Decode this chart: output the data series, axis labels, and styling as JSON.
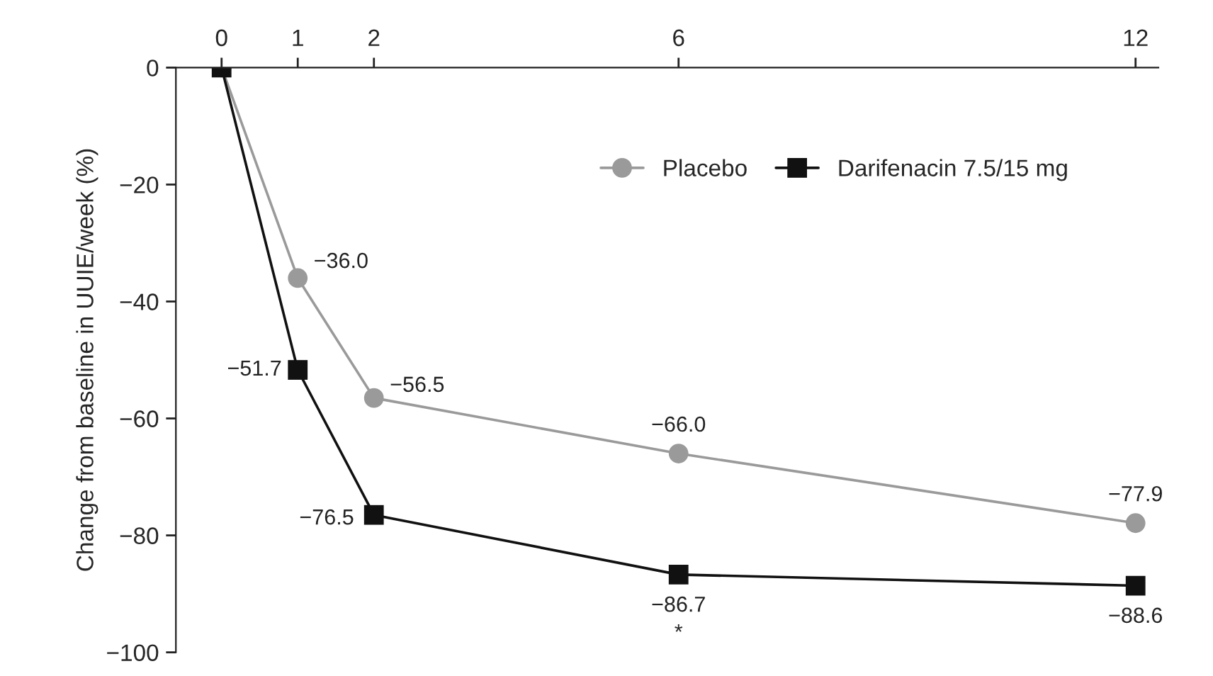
{
  "chart_data": {
    "type": "line",
    "ylabel": "Change from baseline in UUIE/week (%)",
    "x": [
      0,
      1,
      2,
      6,
      12
    ],
    "series": [
      {
        "name": "Placebo",
        "color": "#9a9a9a",
        "marker": "circle",
        "values": [
          0,
          -36.0,
          -56.5,
          -66.0,
          -77.9
        ],
        "value_labels": [
          null,
          "−36.0",
          "−56.5",
          "−66.0",
          "−77.9"
        ]
      },
      {
        "name": "Darifenacin 7.5/15 mg",
        "color": "#111111",
        "marker": "square",
        "values": [
          0,
          -51.7,
          -76.5,
          -86.7,
          -88.6
        ],
        "value_labels": [
          null,
          "−51.7",
          "−76.5",
          "−86.7",
          "−88.6"
        ]
      }
    ],
    "xlim": [
      -0.6,
      12.3
    ],
    "xticks": [
      0,
      1,
      2,
      6,
      12
    ],
    "ylim": [
      -100,
      0
    ],
    "yticks": [
      0,
      -20,
      -40,
      -60,
      -80,
      -100
    ],
    "annotations": [
      {
        "text": "*",
        "x": 6,
        "y": -86.7
      }
    ],
    "grid": false,
    "legend": "top right"
  }
}
